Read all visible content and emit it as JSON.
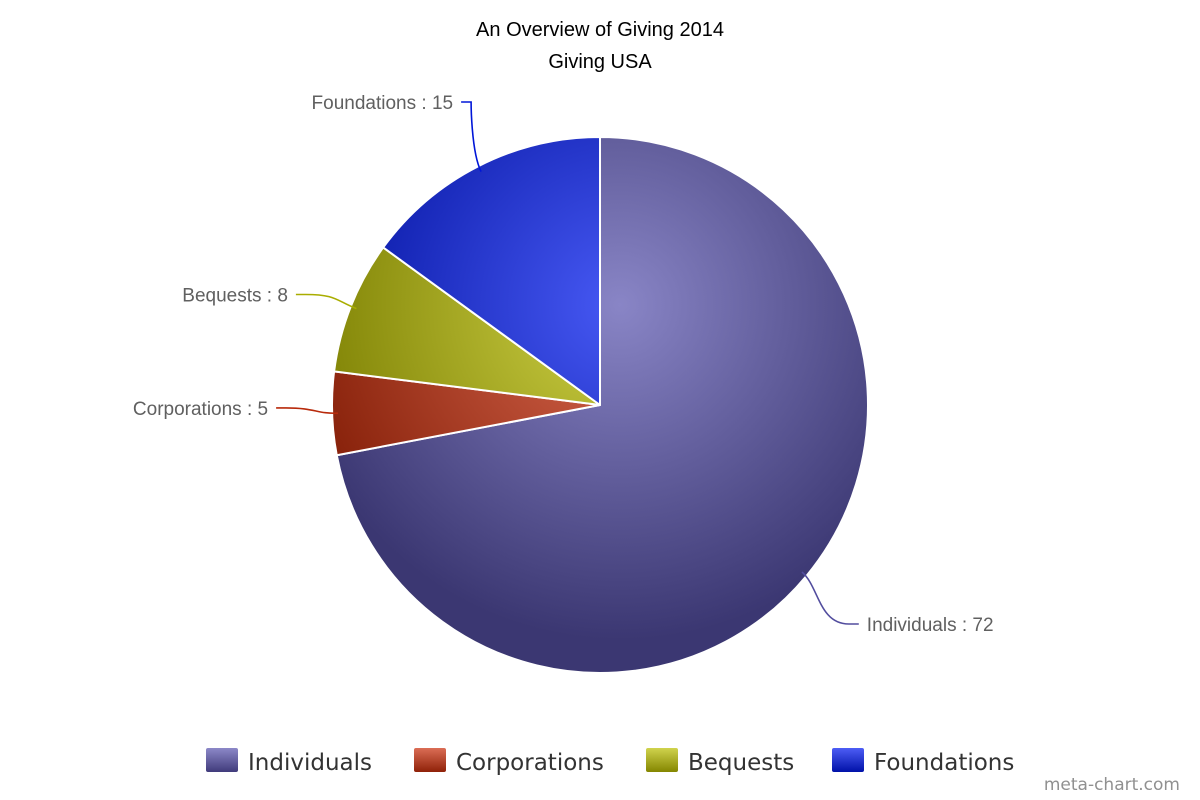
{
  "chart_data": {
    "type": "pie",
    "title": "An Overview of Giving 2014",
    "subtitle": "Giving USA",
    "labels": [
      "Individuals",
      "Corporations",
      "Bequests",
      "Foundations"
    ],
    "values": [
      72,
      5,
      8,
      15
    ],
    "data_labels": [
      "Individuals : 72",
      "Corporations : 5",
      "Bequests : 8",
      "Foundations : 15"
    ],
    "colors": [
      "#5b55b0",
      "#cc2f0c",
      "#bcc000",
      "#0018f0"
    ],
    "start_angle": "12 o'clock",
    "direction": "clockwise",
    "legend": {
      "position": "bottom",
      "entries": [
        "Individuals",
        "Corporations",
        "Bequests",
        "Foundations"
      ]
    }
  },
  "credit": "meta-chart.com"
}
